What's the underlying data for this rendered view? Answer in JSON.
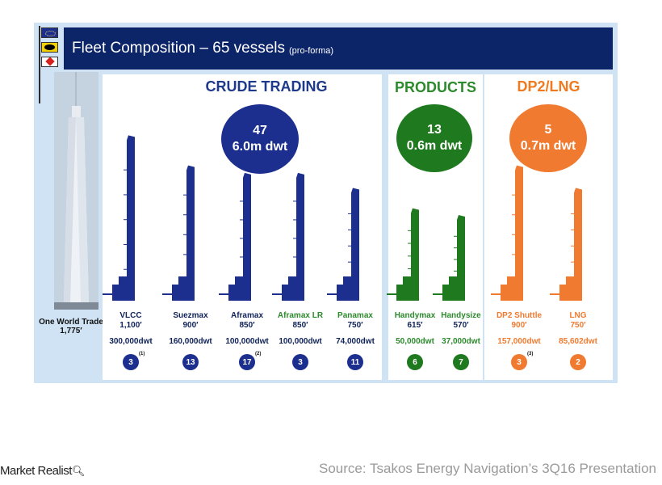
{
  "title": "Fleet Composition – 65 vessels",
  "title_note": "(pro-forma)",
  "tower_label": [
    "One World Trade",
    "1,775′"
  ],
  "sections": [
    {
      "name": "CRUDE TRADING",
      "circle": [
        "47",
        "6.0m dwt"
      ],
      "color": "#1c2f8f"
    },
    {
      "name": "PRODUCTS",
      "circle": [
        "13",
        "0.6m dwt"
      ],
      "color": "#1f7a1f"
    },
    {
      "name": "DP2/LNG",
      "circle": [
        "5",
        "0.7m dwt"
      ],
      "color": "#f07a30"
    }
  ],
  "ships": [
    {
      "name": "VLCC",
      "length": "1,100′",
      "length_ft": 1100,
      "dwt": "300,000dwt",
      "count": "3",
      "note": "(1)",
      "color": "#1c2f8f",
      "label_color": "#0f2258"
    },
    {
      "name": "Suezmax",
      "length": "900′",
      "length_ft": 900,
      "dwt": "160,000dwt",
      "count": "13",
      "note": "",
      "color": "#1c2f8f",
      "label_color": "#0f2258"
    },
    {
      "name": "Aframax",
      "length": "850′",
      "length_ft": 850,
      "dwt": "100,000dwt",
      "count": "17",
      "note": "(2)",
      "color": "#1c2f8f",
      "label_color": "#0f2258"
    },
    {
      "name": "Aframax LR",
      "length": "850′",
      "length_ft": 850,
      "dwt": "100,000dwt",
      "count": "3",
      "note": "",
      "color": "#1c2f8f",
      "label_color": "#2c8a2c"
    },
    {
      "name": "Panamax",
      "length": "750′",
      "length_ft": 750,
      "dwt": "74,000dwt",
      "count": "11",
      "note": "",
      "color": "#1c2f8f",
      "label_color": "#2c8a2c"
    },
    {
      "name": "Handymax",
      "length": "615′",
      "length_ft": 615,
      "dwt": "50,000dwt",
      "count": "6",
      "note": "",
      "color": "#1f7a1f",
      "label_color": "#2c8a2c"
    },
    {
      "name": "Handysize",
      "length": "570′",
      "length_ft": 570,
      "dwt": "37,000dwt",
      "count": "7",
      "note": "",
      "color": "#1f7a1f",
      "label_color": "#2c8a2c"
    },
    {
      "name": "DP2 Shuttle",
      "length": "900′",
      "length_ft": 900,
      "dwt": "157,000dwt",
      "count": "3",
      "note": "(3)",
      "color": "#f07a30",
      "label_color": "#f07a30"
    },
    {
      "name": "LNG",
      "length": "750′",
      "length_ft": 750,
      "dwt": "85,602dwt",
      "count": "2",
      "note": "",
      "color": "#f07a30",
      "label_color": "#f07a30"
    }
  ],
  "brand": "Market Realist",
  "brand_icon": "magnifier-icon",
  "source": "Source: Tsakos Energy Navigation’s 3Q16 Presentation"
}
